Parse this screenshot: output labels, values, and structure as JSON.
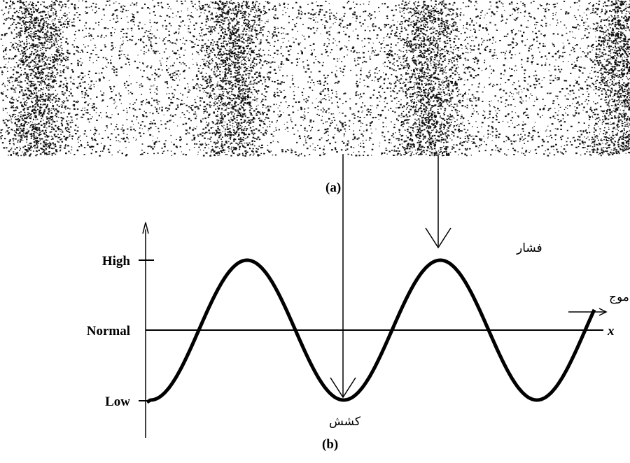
{
  "panel_a": {
    "label": "(a)"
  },
  "panel_b": {
    "label": "(b)",
    "y_labels": {
      "high": "High",
      "normal": "Normal",
      "low": "Low"
    },
    "x_label": "x"
  },
  "annotations": {
    "compression": "فشار",
    "rarefaction": "کشش",
    "direction": "راستای موج"
  }
}
